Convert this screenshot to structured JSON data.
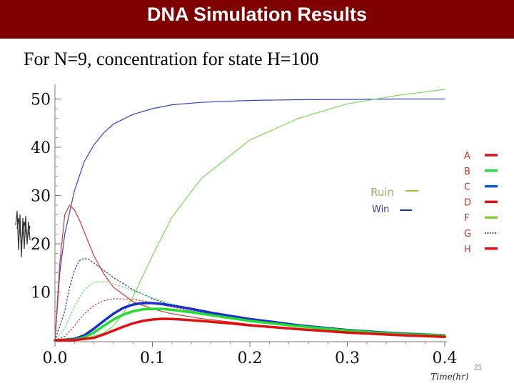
{
  "slide": {
    "title": "DNA Simulation Results",
    "subtitle": "For N=9, concentration for state H=100",
    "page_number": "21"
  },
  "chart_data": {
    "type": "line",
    "title": "",
    "xlabel": "Time(hr)",
    "ylabel": "",
    "xlim": [
      0.0,
      0.4
    ],
    "ylim": [
      0,
      52
    ],
    "x_ticks": [
      0.0,
      0.1,
      0.2,
      0.3,
      0.4
    ],
    "x_tick_labels": [
      "0.0",
      "0.1",
      "0.2",
      "0.3",
      "0.4"
    ],
    "y_ticks": [
      10,
      20,
      30,
      40,
      50
    ],
    "y_tick_labels": [
      "10",
      "20",
      "30",
      "40",
      "50"
    ],
    "grid": false,
    "legend": {
      "placement": "right",
      "entries": [
        {
          "label": "A",
          "color": "#dd1111",
          "style": "solid"
        },
        {
          "label": "B",
          "color": "#22dd44",
          "style": "solid"
        },
        {
          "label": "C",
          "color": "#1155cc",
          "style": "solid"
        },
        {
          "label": "D",
          "color": "#dd1111",
          "style": "solid"
        },
        {
          "label": "F",
          "color": "#88cc44",
          "style": "solid"
        },
        {
          "label": "G",
          "color": "#2233bb",
          "style": "dotted"
        },
        {
          "label": "H",
          "color": "#dd1111",
          "style": "solid"
        }
      ]
    },
    "annotations": [
      {
        "label": "Ruin",
        "color": "#88cc44",
        "text_color": "#88bb66"
      },
      {
        "label": "Win",
        "color": "#1a3a9a",
        "text_color": "#334488"
      }
    ],
    "series": [
      {
        "name": "Win",
        "color": "#3344cc",
        "style": "solid",
        "width": 1.2,
        "x": [
          0.0,
          0.005,
          0.01,
          0.02,
          0.03,
          0.04,
          0.05,
          0.06,
          0.08,
          0.1,
          0.12,
          0.15,
          0.2,
          0.25,
          0.3,
          0.35,
          0.4
        ],
        "y": [
          0,
          14,
          22,
          31,
          37,
          40.5,
          43,
          44.8,
          46.8,
          48,
          48.8,
          49.3,
          49.7,
          49.85,
          49.9,
          50,
          50
        ]
      },
      {
        "name": "Ruin",
        "color": "#77dd55",
        "style": "solid",
        "width": 1.2,
        "x": [
          0.0,
          0.03,
          0.05,
          0.06,
          0.07,
          0.08,
          0.1,
          0.12,
          0.15,
          0.2,
          0.25,
          0.3,
          0.35,
          0.4
        ],
        "y": [
          0,
          0.3,
          1.5,
          3,
          5.5,
          9,
          17.5,
          25.5,
          33.5,
          41.5,
          46,
          49,
          50.7,
          52
        ]
      },
      {
        "color": "#dd3333",
        "style": "solid",
        "width": 1.2,
        "x": [
          0.0,
          0.005,
          0.01,
          0.015,
          0.02,
          0.025,
          0.03,
          0.04,
          0.05,
          0.06,
          0.08,
          0.1,
          0.12,
          0.15,
          0.2,
          0.25,
          0.3,
          0.35,
          0.4
        ],
        "y": [
          0,
          16,
          26,
          28,
          27,
          25,
          22.5,
          17.5,
          13.8,
          11,
          8,
          6.5,
          5.5,
          4.5,
          3.3,
          2.4,
          1.7,
          1.2,
          0.9
        ]
      },
      {
        "color": "#3344bb",
        "style": "dotted",
        "width": 1.3,
        "x": [
          0.0,
          0.01,
          0.015,
          0.02,
          0.025,
          0.03,
          0.035,
          0.04,
          0.05,
          0.06,
          0.08,
          0.1,
          0.12,
          0.15,
          0.2,
          0.25,
          0.3,
          0.35,
          0.4
        ],
        "y": [
          0,
          6,
          11,
          14.5,
          16.5,
          17,
          16.7,
          16,
          14.5,
          13,
          10.5,
          8.6,
          7.2,
          5.8,
          4.2,
          3,
          2.2,
          1.6,
          1.2
        ]
      },
      {
        "color": "#66dd66",
        "style": "dotted",
        "width": 1.3,
        "x": [
          0.0,
          0.01,
          0.02,
          0.03,
          0.04,
          0.05,
          0.06,
          0.08,
          0.1,
          0.12,
          0.15,
          0.2,
          0.25,
          0.3,
          0.35,
          0.4
        ],
        "y": [
          0,
          2.5,
          7,
          10.5,
          12,
          12.2,
          11.7,
          10.3,
          8.8,
          7.5,
          6,
          4.3,
          3.1,
          2.3,
          1.7,
          1.2
        ]
      },
      {
        "color": "#cc4444",
        "style": "dotted",
        "width": 1.3,
        "x": [
          0.0,
          0.01,
          0.02,
          0.03,
          0.04,
          0.05,
          0.06,
          0.08,
          0.1,
          0.12,
          0.15,
          0.2,
          0.25,
          0.3,
          0.35,
          0.4
        ],
        "y": [
          0,
          0.8,
          3,
          5.5,
          7.2,
          8.2,
          8.6,
          8.5,
          7.8,
          6.9,
          5.6,
          4,
          2.9,
          2.1,
          1.6,
          1.1
        ]
      },
      {
        "color": "#1a2fcc",
        "style": "solid",
        "width": 3.5,
        "x": [
          0.0,
          0.01,
          0.02,
          0.03,
          0.04,
          0.05,
          0.06,
          0.07,
          0.08,
          0.09,
          0.1,
          0.11,
          0.12,
          0.14,
          0.16,
          0.2,
          0.25,
          0.3,
          0.35,
          0.4
        ],
        "y": [
          0,
          0.1,
          0.3,
          1,
          2.4,
          4,
          5.5,
          6.7,
          7.4,
          7.7,
          7.7,
          7.5,
          7.2,
          6.5,
          5.7,
          4.4,
          3.1,
          2.1,
          1.4,
          0.9
        ]
      },
      {
        "color": "#22dd33",
        "style": "solid",
        "width": 3.5,
        "x": [
          0.0,
          0.02,
          0.03,
          0.04,
          0.05,
          0.06,
          0.07,
          0.08,
          0.09,
          0.1,
          0.11,
          0.12,
          0.14,
          0.16,
          0.2,
          0.25,
          0.3,
          0.35,
          0.4
        ],
        "y": [
          0,
          0.1,
          0.6,
          1.6,
          3,
          4.3,
          5.3,
          6,
          6.4,
          6.5,
          6.5,
          6.3,
          5.8,
          5.2,
          4,
          2.9,
          2,
          1.3,
          0.9
        ]
      },
      {
        "color": "#dd1111",
        "style": "solid",
        "width": 3.5,
        "x": [
          0.0,
          0.02,
          0.04,
          0.05,
          0.06,
          0.07,
          0.08,
          0.09,
          0.1,
          0.11,
          0.12,
          0.13,
          0.15,
          0.18,
          0.2,
          0.25,
          0.3,
          0.35,
          0.4
        ],
        "y": [
          0,
          0.05,
          0.5,
          1.2,
          2,
          2.8,
          3.5,
          4,
          4.3,
          4.45,
          4.4,
          4.3,
          4,
          3.5,
          3.1,
          2.3,
          1.6,
          1.1,
          0.7
        ]
      }
    ]
  }
}
